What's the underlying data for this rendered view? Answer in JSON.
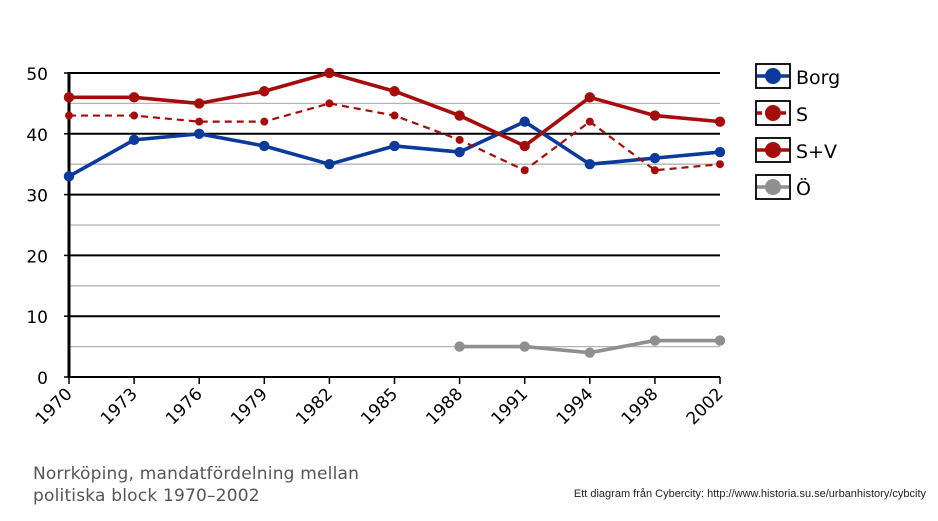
{
  "chart_data": {
    "type": "line",
    "title_lines": [
      "Norrköping, mandatfördelning mellan",
      "politiska block 1970–2002"
    ],
    "credit": "Ett diagram från Cybercity: http://www.historia.su.se/urbanhistory/cybcity",
    "categories": [
      "1970",
      "1973",
      "1976",
      "1979",
      "1982",
      "1985",
      "1988",
      "1991",
      "1994",
      "1998",
      "2002"
    ],
    "ylim": [
      0,
      50
    ],
    "yticks": [
      0,
      10,
      20,
      30,
      40,
      50
    ],
    "minor_gridlines": [
      5,
      15,
      25,
      35,
      45
    ],
    "legend_position": "right",
    "series": [
      {
        "name": "Borg",
        "color": "#0b3a9a",
        "dashed": false,
        "values": [
          33,
          39,
          40,
          38,
          35,
          38,
          37,
          42,
          35,
          36,
          37
        ]
      },
      {
        "name": "S",
        "color": "#a50d0d",
        "dashed": true,
        "values": [
          43,
          43,
          42,
          42,
          45,
          43,
          39,
          34,
          42,
          34,
          35
        ]
      },
      {
        "name": "S+V",
        "color": "#a50d0d",
        "dashed": false,
        "values": [
          46,
          46,
          45,
          47,
          50,
          47,
          43,
          38,
          46,
          43,
          42
        ]
      },
      {
        "name": "Ö",
        "color": "#8f8f8f",
        "dashed": false,
        "values": [
          null,
          null,
          null,
          null,
          null,
          null,
          5,
          5,
          4,
          6,
          6
        ]
      }
    ]
  }
}
